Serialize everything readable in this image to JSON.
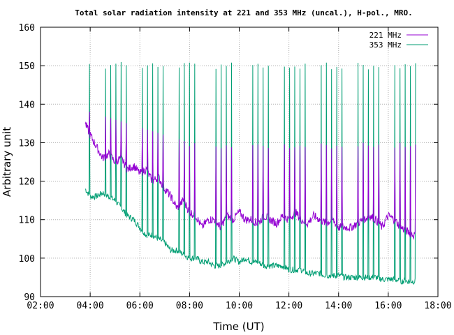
{
  "chart_data": {
    "type": "line",
    "title": "Total solar radiation intensity at 221 and 353 MHz (uncal.), H-pol., MRO.",
    "xlabel": "Time (UT)",
    "ylabel": "Arbitrary unit",
    "xlim": [
      2,
      18
    ],
    "ylim": [
      90,
      160
    ],
    "x_ticks": [
      2,
      4,
      6,
      8,
      10,
      12,
      14,
      16,
      18
    ],
    "x_tick_labels": [
      "02:00",
      "04:00",
      "06:00",
      "08:00",
      "10:00",
      "12:00",
      "14:00",
      "16:00",
      "18:00"
    ],
    "y_ticks": [
      90,
      100,
      110,
      120,
      130,
      140,
      150,
      160
    ],
    "y_tick_labels": [
      "90",
      "100",
      "110",
      "120",
      "130",
      "140",
      "150",
      "160"
    ],
    "grid": true,
    "legend_position": "top-right",
    "colors": {
      "s221": "#9400d3",
      "s353": "#009e73",
      "axis": "#000000",
      "grid": "#b0b0b0"
    },
    "series": [
      {
        "name": "221 MHz",
        "x": [
          3.8,
          4.0,
          4.25,
          4.5,
          4.75,
          5.0,
          5.25,
          5.5,
          5.75,
          6.0,
          6.25,
          6.5,
          6.75,
          7.0,
          7.25,
          7.5,
          7.75,
          8.0,
          8.25,
          8.5,
          8.75,
          9.0,
          9.25,
          9.5,
          9.75,
          10.0,
          10.25,
          10.5,
          10.75,
          11.0,
          11.25,
          11.5,
          11.75,
          12.0,
          12.25,
          12.5,
          12.75,
          13.0,
          13.25,
          13.5,
          13.75,
          14.0,
          14.25,
          14.5,
          14.75,
          15.0,
          15.25,
          15.5,
          15.75,
          16.0,
          16.25,
          16.5,
          16.75,
          17.0,
          17.1
        ],
        "y": [
          135,
          132,
          129,
          126,
          127,
          125,
          126,
          123,
          124,
          122,
          123,
          120,
          121,
          118,
          116,
          113,
          115,
          112,
          111,
          108,
          110,
          110,
          108,
          111,
          110,
          112,
          110,
          110,
          109,
          111,
          110,
          109,
          111,
          110,
          112,
          110,
          109,
          111,
          110,
          109,
          110,
          108,
          108,
          108,
          109,
          110,
          111,
          110,
          108,
          111,
          110,
          108,
          107,
          106,
          106
        ],
        "spike_top": 138,
        "spike_top_late": 130
      },
      {
        "name": "353 MHz",
        "x": [
          3.8,
          4.0,
          4.25,
          4.5,
          4.75,
          5.0,
          5.25,
          5.5,
          5.75,
          6.0,
          6.25,
          6.5,
          6.75,
          7.0,
          7.25,
          7.5,
          7.75,
          8.0,
          8.25,
          8.5,
          8.75,
          9.0,
          9.25,
          9.5,
          9.75,
          10.0,
          10.25,
          10.5,
          10.75,
          11.0,
          11.25,
          11.5,
          11.75,
          12.0,
          12.25,
          12.5,
          12.75,
          13.0,
          13.25,
          13.5,
          13.75,
          14.0,
          14.25,
          14.5,
          14.75,
          15.0,
          15.25,
          15.5,
          15.75,
          16.0,
          16.25,
          16.5,
          16.75,
          17.0,
          17.1
        ],
        "y": [
          118,
          116,
          116,
          117,
          116,
          115,
          113,
          111,
          110,
          108,
          106,
          106,
          105,
          104,
          102,
          102,
          101,
          100,
          100,
          99,
          99,
          98,
          98,
          99,
          100,
          99,
          100,
          99,
          99,
          98,
          98,
          98,
          98,
          97,
          97,
          97,
          96,
          96,
          96,
          95.5,
          95.5,
          95.5,
          95,
          95,
          95,
          95,
          95,
          95,
          94.5,
          94.5,
          94.5,
          94,
          94,
          94,
          94
        ],
        "spike_top": 151,
        "spike_count": 62
      }
    ]
  }
}
